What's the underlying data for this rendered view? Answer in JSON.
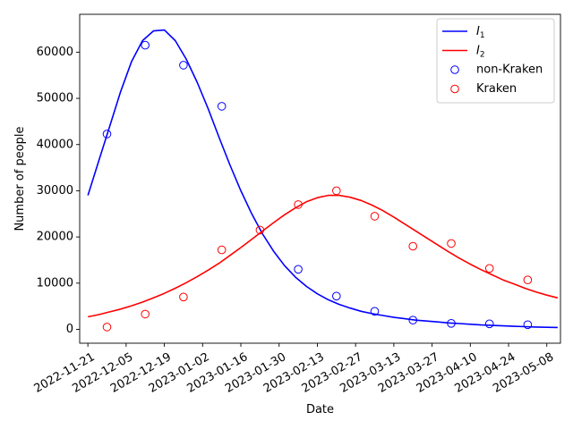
{
  "chart_data": {
    "type": "line",
    "xlabel": "Date",
    "ylabel": "Number of people",
    "x_ticks": [
      "2022-11-21",
      "2022-12-05",
      "2022-12-19",
      "2023-01-02",
      "2023-01-16",
      "2023-01-30",
      "2023-02-13",
      "2023-02-27",
      "2023-03-13",
      "2023-03-27",
      "2023-04-10",
      "2023-04-24",
      "2023-05-08"
    ],
    "y_ticks": [
      0,
      10000,
      20000,
      30000,
      40000,
      50000,
      60000
    ],
    "xlim": [
      "2022-11-18",
      "2023-05-13"
    ],
    "ylim": [
      -3000,
      68200
    ],
    "grid": false,
    "legend_position": "upper right",
    "series": [
      {
        "name": "I_1",
        "kind": "line",
        "color": "#0000ff",
        "x": [
          "2022-11-21",
          "2022-11-25",
          "2022-11-29",
          "2022-12-03",
          "2022-12-07",
          "2022-12-11",
          "2022-12-15",
          "2022-12-19",
          "2022-12-23",
          "2022-12-27",
          "2022-12-31",
          "2023-01-04",
          "2023-01-08",
          "2023-01-12",
          "2023-01-16",
          "2023-01-20",
          "2023-01-24",
          "2023-01-28",
          "2023-02-01",
          "2023-02-05",
          "2023-02-09",
          "2023-02-13",
          "2023-02-17",
          "2023-02-21",
          "2023-02-25",
          "2023-03-01",
          "2023-03-05",
          "2023-03-09",
          "2023-03-13",
          "2023-03-17",
          "2023-03-21",
          "2023-03-25",
          "2023-03-29",
          "2023-04-02",
          "2023-04-06",
          "2023-04-10",
          "2023-04-14",
          "2023-04-18",
          "2023-04-22",
          "2023-04-26",
          "2023-04-30",
          "2023-05-04",
          "2023-05-08",
          "2023-05-12"
        ],
        "y": [
          29000,
          36500,
          44000,
          51500,
          58000,
          62500,
          64600,
          64800,
          62500,
          58500,
          53500,
          47800,
          41600,
          35600,
          30000,
          25000,
          20600,
          16900,
          13800,
          11300,
          9300,
          7700,
          6400,
          5400,
          4600,
          3900,
          3400,
          3000,
          2600,
          2300,
          2000,
          1800,
          1600,
          1400,
          1250,
          1100,
          950,
          850,
          750,
          650,
          580,
          510,
          450,
          400
        ]
      },
      {
        "name": "I_2",
        "kind": "line",
        "color": "#ff0000",
        "x": [
          "2022-11-21",
          "2022-11-25",
          "2022-11-29",
          "2022-12-03",
          "2022-12-07",
          "2022-12-11",
          "2022-12-15",
          "2022-12-19",
          "2022-12-23",
          "2022-12-27",
          "2022-12-31",
          "2023-01-04",
          "2023-01-08",
          "2023-01-12",
          "2023-01-16",
          "2023-01-20",
          "2023-01-24",
          "2023-01-28",
          "2023-02-01",
          "2023-02-05",
          "2023-02-09",
          "2023-02-13",
          "2023-02-17",
          "2023-02-21",
          "2023-02-25",
          "2023-03-01",
          "2023-03-05",
          "2023-03-09",
          "2023-03-13",
          "2023-03-17",
          "2023-03-21",
          "2023-03-25",
          "2023-03-29",
          "2023-04-02",
          "2023-04-06",
          "2023-04-10",
          "2023-04-14",
          "2023-04-18",
          "2023-04-22",
          "2023-04-26",
          "2023-04-30",
          "2023-05-04",
          "2023-05-08",
          "2023-05-12"
        ],
        "y": [
          2700,
          3200,
          3800,
          4400,
          5100,
          5900,
          6800,
          7800,
          8900,
          10100,
          11400,
          12800,
          14300,
          16000,
          17700,
          19500,
          21300,
          23100,
          24800,
          26300,
          27600,
          28500,
          29000,
          29000,
          28600,
          27900,
          26900,
          25700,
          24300,
          22800,
          21300,
          19800,
          18300,
          16800,
          15400,
          14100,
          12900,
          11800,
          10700,
          9800,
          8900,
          8100,
          7400,
          6800
        ]
      },
      {
        "name": "non-Kraken",
        "kind": "scatter",
        "color": "#0000ff",
        "x": [
          "2022-11-28",
          "2022-12-12",
          "2022-12-26",
          "2023-01-09",
          "2023-02-06",
          "2023-02-20",
          "2023-03-06",
          "2023-03-20",
          "2023-04-03",
          "2023-04-17",
          "2023-05-01"
        ],
        "y": [
          42300,
          61500,
          57200,
          48300,
          13000,
          7200,
          3900,
          2000,
          1300,
          1200,
          1000
        ]
      },
      {
        "name": "Kraken",
        "kind": "scatter",
        "color": "#ff0000",
        "x": [
          "2022-11-28",
          "2022-12-12",
          "2022-12-26",
          "2023-01-09",
          "2023-01-23",
          "2023-02-06",
          "2023-02-20",
          "2023-03-06",
          "2023-03-20",
          "2023-04-03",
          "2023-04-17",
          "2023-05-01"
        ],
        "y": [
          500,
          3300,
          7000,
          17200,
          21500,
          27000,
          30000,
          24500,
          18000,
          18600,
          13200,
          10700
        ]
      }
    ]
  }
}
